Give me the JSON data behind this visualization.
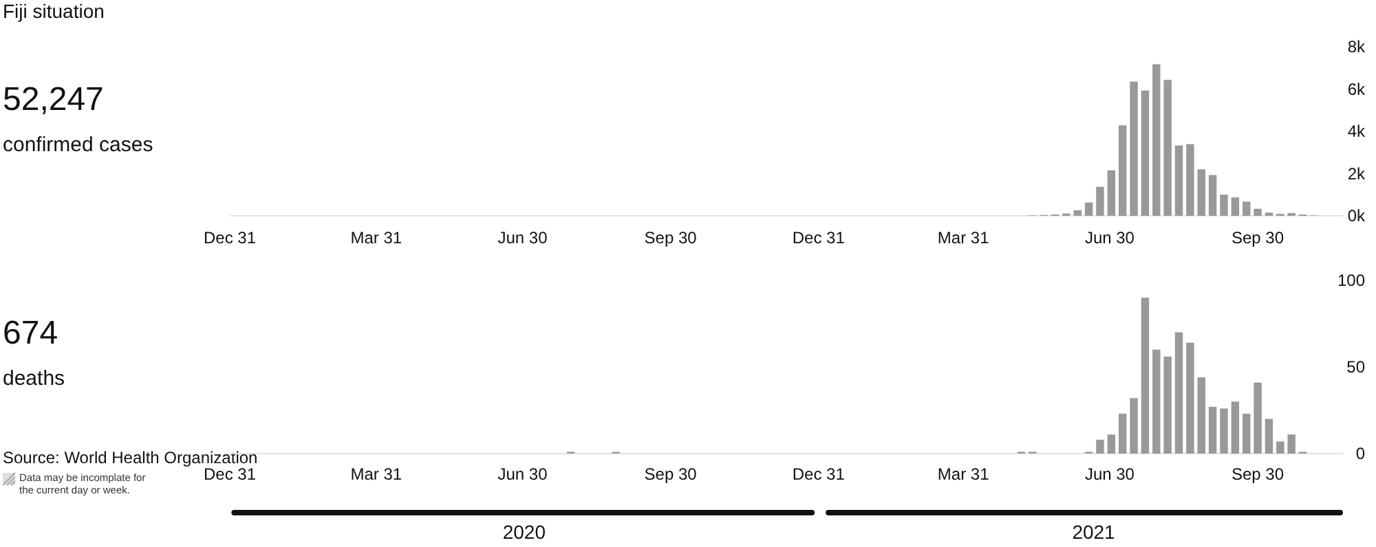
{
  "chart_data": [
    {
      "type": "bar",
      "title": "Fiji situation",
      "annotations": [
        "52,247",
        "confirmed cases"
      ],
      "x": [
        "2021-05-06",
        "2021-05-13",
        "2021-05-20",
        "2021-05-27",
        "2021-06-03",
        "2021-06-10",
        "2021-06-17",
        "2021-06-24",
        "2021-07-01",
        "2021-07-08",
        "2021-07-15",
        "2021-07-22",
        "2021-07-29",
        "2021-08-05",
        "2021-08-12",
        "2021-08-19",
        "2021-08-26",
        "2021-09-02",
        "2021-09-09",
        "2021-09-16",
        "2021-09-23",
        "2021-09-30",
        "2021-10-07",
        "2021-10-14",
        "2021-10-21",
        "2021-10-28",
        "2021-11-04"
      ],
      "series": [
        {
          "color": "#999999",
          "values": [
            0,
            20,
            40,
            60,
            110,
            260,
            630,
            1370,
            2150,
            4280,
            6350,
            5930,
            7170,
            6430,
            3330,
            3390,
            2200,
            1930,
            1000,
            870,
            670,
            330,
            150,
            90,
            130,
            60,
            20
          ]
        }
      ],
      "xticks": [
        {
          "value": "2019-12-31",
          "label": "Dec 31"
        },
        {
          "value": "2020-03-31",
          "label": "Mar 31"
        },
        {
          "value": "2020-06-30",
          "label": "Jun 30"
        },
        {
          "value": "2020-09-30",
          "label": "Sep 30"
        },
        {
          "value": "2020-12-31",
          "label": "Dec 31"
        },
        {
          "value": "2021-03-31",
          "label": "Mar 31"
        },
        {
          "value": "2021-06-30",
          "label": "Jun 30"
        },
        {
          "value": "2021-09-30",
          "label": "Sep 30"
        }
      ],
      "xlim": [
        "2019-12-31",
        "2021-11-22"
      ],
      "ylim": [
        0,
        8000
      ],
      "yticks": [
        {
          "value": 0,
          "label": "0k"
        },
        {
          "value": 2000,
          "label": "2k"
        },
        {
          "value": 4000,
          "label": "4k"
        },
        {
          "value": 6000,
          "label": "6k"
        },
        {
          "value": 8000,
          "label": "8k"
        }
      ]
    },
    {
      "type": "bar",
      "annotations": [
        "674",
        "deaths",
        "Source: World Health Organization",
        "Data may be incomplate for the current day or week."
      ],
      "x": [
        "2020-07-30",
        "2020-08-27",
        "2021-05-06",
        "2021-05-13",
        "2021-06-17",
        "2021-06-24",
        "2021-07-01",
        "2021-07-08",
        "2021-07-15",
        "2021-07-22",
        "2021-07-29",
        "2021-08-05",
        "2021-08-12",
        "2021-08-19",
        "2021-08-26",
        "2021-09-02",
        "2021-09-09",
        "2021-09-16",
        "2021-09-23",
        "2021-09-30",
        "2021-10-07",
        "2021-10-14",
        "2021-10-21",
        "2021-10-28"
      ],
      "series": [
        {
          "color": "#999999",
          "values": [
            1,
            1,
            1,
            1,
            1,
            8,
            11,
            23,
            32,
            90,
            60,
            56,
            70,
            64,
            44,
            27,
            26,
            30,
            23,
            41,
            20,
            7,
            11,
            1
          ]
        }
      ],
      "xticks": [
        {
          "value": "2019-12-31",
          "label": "Dec 31"
        },
        {
          "value": "2020-03-31",
          "label": "Mar 31"
        },
        {
          "value": "2020-06-30",
          "label": "Jun 30"
        },
        {
          "value": "2020-09-30",
          "label": "Sep 30"
        },
        {
          "value": "2020-12-31",
          "label": "Dec 31"
        },
        {
          "value": "2021-03-31",
          "label": "Mar 31"
        },
        {
          "value": "2021-06-30",
          "label": "Jun 30"
        },
        {
          "value": "2021-09-30",
          "label": "Sep 30"
        }
      ],
      "xlim": [
        "2019-12-31",
        "2021-11-22"
      ],
      "x2lim": [
        "2019-12-31",
        "2021-11-22"
      ],
      "x2ticks": [
        {
          "value": "2020-07-01",
          "label": "2020"
        },
        {
          "value": "2021-06-20",
          "label": "2021"
        }
      ],
      "ylim": [
        0,
        100
      ],
      "yticks": [
        0,
        50,
        100
      ]
    }
  ]
}
